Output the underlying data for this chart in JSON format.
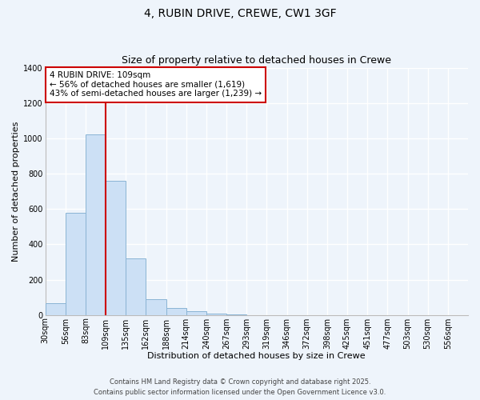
{
  "title": "4, RUBIN DRIVE, CREWE, CW1 3GF",
  "subtitle": "Size of property relative to detached houses in Crewe",
  "xlabel": "Distribution of detached houses by size in Crewe",
  "ylabel": "Number of detached properties",
  "bin_labels": [
    "30sqm",
    "56sqm",
    "83sqm",
    "109sqm",
    "135sqm",
    "162sqm",
    "188sqm",
    "214sqm",
    "240sqm",
    "267sqm",
    "293sqm",
    "319sqm",
    "346sqm",
    "372sqm",
    "398sqm",
    "425sqm",
    "451sqm",
    "477sqm",
    "503sqm",
    "530sqm",
    "556sqm"
  ],
  "bar_values": [
    65,
    580,
    1020,
    760,
    320,
    90,
    40,
    20,
    8,
    2,
    0,
    0,
    0,
    0,
    0,
    0,
    0,
    0,
    0,
    0
  ],
  "bar_color": "#cce0f5",
  "bar_edge_color": "#8ab4d4",
  "vline_x_label": "109sqm",
  "vline_color": "#cc0000",
  "ylim": [
    0,
    1400
  ],
  "yticks": [
    0,
    200,
    400,
    600,
    800,
    1000,
    1200,
    1400
  ],
  "annotation_title": "4 RUBIN DRIVE: 109sqm",
  "annotation_line1": "← 56% of detached houses are smaller (1,619)",
  "annotation_line2": "43% of semi-detached houses are larger (1,239) →",
  "annotation_box_color": "#ffffff",
  "annotation_box_edge": "#cc0000",
  "footer_line1": "Contains HM Land Registry data © Crown copyright and database right 2025.",
  "footer_line2": "Contains public sector information licensed under the Open Government Licence v3.0.",
  "background_color": "#eef4fb",
  "grid_color": "#ffffff",
  "title_fontsize": 10,
  "subtitle_fontsize": 9,
  "axis_label_fontsize": 8,
  "tick_fontsize": 7,
  "annotation_fontsize": 7.5,
  "footer_fontsize": 6
}
